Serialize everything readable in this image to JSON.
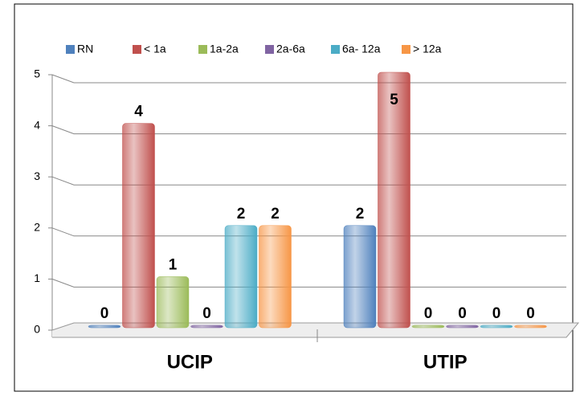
{
  "chart_data": {
    "type": "bar",
    "categories": [
      "UCIP",
      "UTIP"
    ],
    "series": [
      {
        "name": "RN",
        "color": "#4f81bd",
        "values": [
          0,
          2
        ]
      },
      {
        "name": "< 1a",
        "color": "#c0504d",
        "values": [
          4,
          5
        ]
      },
      {
        "name": "1a-2a",
        "color": "#9bbb59",
        "values": [
          1,
          0
        ]
      },
      {
        "name": "2a-6a",
        "color": "#8064a2",
        "values": [
          0,
          0
        ]
      },
      {
        "name": "6a- 12a",
        "color": "#4bacc6",
        "values": [
          2,
          0
        ]
      },
      {
        "name": "> 12a",
        "color": "#f79646",
        "values": [
          2,
          0
        ]
      }
    ],
    "ylim": [
      0,
      5
    ],
    "yticks": [
      0,
      1,
      2,
      3,
      4,
      5
    ],
    "grid": true,
    "legend": "top"
  }
}
